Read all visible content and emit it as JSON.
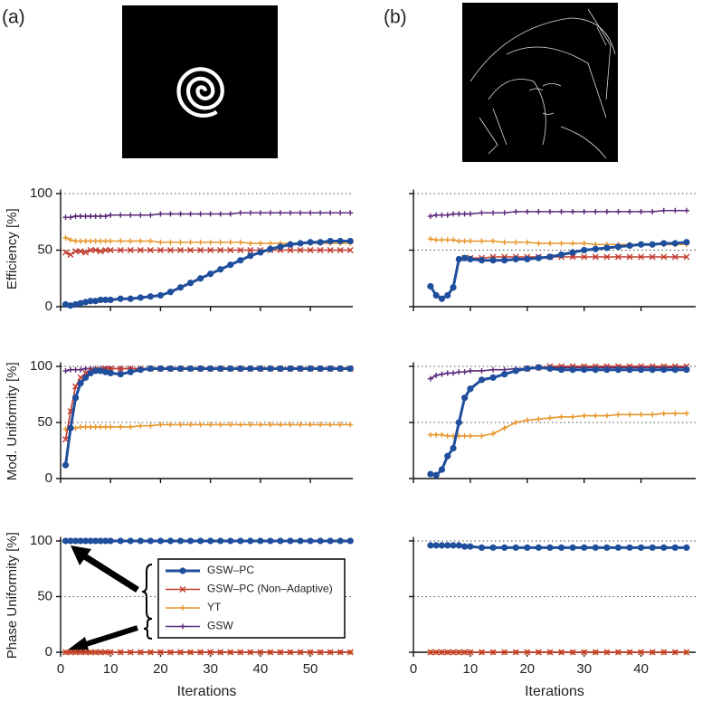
{
  "panel_labels": [
    "(a)",
    "(b)"
  ],
  "chart_data": [
    {
      "type": "line",
      "ylabel": "Efficiency [%]",
      "x": [
        1,
        2,
        3,
        4,
        5,
        6,
        7,
        8,
        9,
        10,
        12,
        14,
        16,
        18,
        20,
        22,
        24,
        26,
        28,
        30,
        32,
        34,
        36,
        38,
        40,
        42,
        44,
        46,
        48,
        50,
        52,
        54,
        56,
        58
      ],
      "xlim": [
        0,
        58.5
      ],
      "xticks": [
        0,
        10,
        20,
        30,
        40,
        50
      ],
      "show_xtick_labels": false,
      "ylim": [
        0,
        102
      ],
      "yticks": [
        0,
        50,
        100
      ],
      "show_ytick_labels": true,
      "grid": "dotted",
      "series": [
        {
          "color": "#1f4e9c",
          "marker": "o",
          "values": [
            2,
            1,
            2,
            3,
            4,
            5,
            5,
            6,
            6,
            6,
            7,
            7,
            8,
            9,
            10,
            13,
            17,
            21,
            25,
            29,
            33,
            37,
            41,
            45,
            48,
            51,
            53,
            55,
            56,
            57,
            57,
            58,
            58,
            58
          ]
        },
        {
          "color": "#c0392b",
          "marker": "x",
          "values": [
            48,
            46,
            49,
            49,
            48,
            50,
            50,
            49,
            50,
            50,
            50,
            50,
            50,
            50,
            50,
            50,
            50,
            50,
            50,
            50,
            50,
            50,
            50,
            50,
            50,
            50,
            50,
            50,
            50,
            50,
            50,
            50,
            50,
            50
          ]
        },
        {
          "color": "#e8962a",
          "marker": "+",
          "values": [
            61,
            59,
            58,
            58,
            58,
            58,
            58,
            58,
            58,
            58,
            58,
            58,
            58,
            58,
            57,
            57,
            57,
            57,
            57,
            57,
            57,
            57,
            57,
            56,
            56,
            56,
            56,
            56,
            56,
            56,
            56,
            56,
            56,
            56
          ]
        },
        {
          "color": "#5b2a7a",
          "marker": "+",
          "values": [
            79,
            79,
            80,
            80,
            80,
            80,
            80,
            80,
            80,
            81,
            81,
            81,
            81,
            81,
            82,
            82,
            82,
            82,
            82,
            82,
            82,
            82,
            83,
            83,
            83,
            83,
            83,
            83,
            83,
            83,
            83,
            83,
            83,
            83
          ]
        }
      ]
    },
    {
      "type": "line",
      "x": [
        3,
        4,
        5,
        6,
        7,
        8,
        9,
        10,
        12,
        14,
        16,
        18,
        20,
        22,
        24,
        26,
        28,
        30,
        32,
        34,
        36,
        38,
        40,
        42,
        44,
        46,
        48
      ],
      "xlim": [
        0,
        49.6
      ],
      "xticks": [
        0,
        10,
        20,
        30,
        40
      ],
      "show_xtick_labels": false,
      "ylim": [
        0,
        102
      ],
      "yticks": [
        0,
        50,
        100
      ],
      "show_ytick_labels": false,
      "grid": "dotted",
      "series": [
        {
          "color": "#1f4e9c",
          "marker": "o",
          "values": [
            18,
            10,
            7,
            10,
            17,
            42,
            43,
            42,
            41,
            41,
            41,
            42,
            42,
            43,
            44,
            46,
            48,
            50,
            51,
            52,
            53,
            54,
            55,
            55,
            56,
            56,
            57
          ]
        },
        {
          "color": "#c0392b",
          "marker": "x",
          "values": [
            null,
            null,
            null,
            null,
            null,
            null,
            43,
            43,
            43,
            44,
            44,
            44,
            44,
            44,
            44,
            44,
            44,
            44,
            44,
            44,
            44,
            44,
            44,
            44,
            44,
            44,
            44
          ]
        },
        {
          "color": "#e8962a",
          "marker": "+",
          "values": [
            60,
            59,
            59,
            59,
            59,
            58,
            58,
            58,
            58,
            58,
            57,
            57,
            57,
            56,
            56,
            56,
            56,
            56,
            55,
            55,
            55,
            55,
            55,
            55,
            55,
            55,
            55
          ]
        },
        {
          "color": "#5b2a7a",
          "marker": "+",
          "values": [
            80,
            81,
            81,
            81,
            82,
            82,
            82,
            82,
            83,
            83,
            83,
            84,
            84,
            84,
            84,
            84,
            84,
            84,
            84,
            84,
            84,
            84,
            84,
            84,
            85,
            85,
            85
          ]
        }
      ]
    },
    {
      "type": "line",
      "ylabel": "Mod. Uniformity [%]",
      "x": [
        1,
        2,
        3,
        4,
        5,
        6,
        7,
        8,
        9,
        10,
        12,
        14,
        16,
        18,
        20,
        22,
        24,
        26,
        28,
        30,
        32,
        34,
        36,
        38,
        40,
        42,
        44,
        46,
        48,
        50,
        52,
        54,
        56,
        58
      ],
      "xlim": [
        0,
        58.5
      ],
      "xticks": [
        0,
        10,
        20,
        30,
        40,
        50
      ],
      "show_xtick_labels": false,
      "ylim": [
        0,
        102
      ],
      "yticks": [
        0,
        50,
        100
      ],
      "show_ytick_labels": true,
      "grid": "dotted",
      "series": [
        {
          "color": "#1f4e9c",
          "marker": "o",
          "values": [
            12,
            45,
            72,
            85,
            90,
            94,
            96,
            96,
            95,
            94,
            93,
            95,
            97,
            98,
            98,
            98,
            98,
            98,
            98,
            98,
            98,
            98,
            98,
            98,
            98,
            98,
            98,
            98,
            98,
            98,
            98,
            98,
            98,
            98
          ]
        },
        {
          "color": "#c0392b",
          "marker": "x",
          "values": [
            35,
            60,
            82,
            90,
            94,
            96,
            97,
            97,
            98,
            98,
            98,
            98,
            98,
            98,
            98,
            98,
            98,
            98,
            98,
            98,
            98,
            98,
            98,
            98,
            98,
            98,
            98,
            98,
            98,
            98,
            98,
            98,
            98,
            98
          ]
        },
        {
          "color": "#e8962a",
          "marker": "+",
          "values": [
            44,
            45,
            45,
            46,
            46,
            46,
            46,
            46,
            46,
            46,
            46,
            46,
            47,
            47,
            48,
            48,
            48,
            48,
            48,
            48,
            48,
            48,
            48,
            48,
            48,
            48,
            48,
            48,
            48,
            48,
            48,
            48,
            48,
            48
          ]
        },
        {
          "color": "#5b2a7a",
          "marker": "+",
          "values": [
            96,
            97,
            97,
            97,
            98,
            98,
            98,
            98,
            98,
            98,
            98,
            98,
            98,
            98,
            98,
            98,
            98,
            98,
            98,
            98,
            98,
            98,
            98,
            98,
            98,
            98,
            98,
            98,
            98,
            98,
            98,
            98,
            98,
            98
          ]
        }
      ]
    },
    {
      "type": "line",
      "x": [
        3,
        4,
        5,
        6,
        7,
        8,
        9,
        10,
        12,
        14,
        16,
        18,
        20,
        22,
        24,
        26,
        28,
        30,
        32,
        34,
        36,
        38,
        40,
        42,
        44,
        46,
        48
      ],
      "xlim": [
        0,
        49.6
      ],
      "xticks": [
        0,
        10,
        20,
        30,
        40
      ],
      "show_xtick_labels": false,
      "ylim": [
        0,
        102
      ],
      "yticks": [
        0,
        50,
        100
      ],
      "show_ytick_labels": false,
      "grid": "dotted",
      "series": [
        {
          "color": "#1f4e9c",
          "marker": "o",
          "values": [
            4,
            3,
            8,
            20,
            27,
            50,
            72,
            80,
            88,
            90,
            93,
            96,
            98,
            99,
            98,
            97,
            97,
            97,
            97,
            97,
            97,
            97,
            97,
            97,
            97,
            97,
            97
          ]
        },
        {
          "color": "#c0392b",
          "marker": "x",
          "values": [
            null,
            null,
            null,
            null,
            null,
            null,
            null,
            null,
            null,
            null,
            null,
            null,
            98,
            99,
            100,
            100,
            100,
            100,
            100,
            100,
            100,
            100,
            100,
            100,
            100,
            100,
            100
          ]
        },
        {
          "color": "#e8962a",
          "marker": "+",
          "values": [
            39,
            39,
            39,
            38,
            38,
            38,
            38,
            38,
            38,
            40,
            45,
            50,
            52,
            53,
            54,
            55,
            55,
            56,
            56,
            56,
            57,
            57,
            57,
            57,
            58,
            58,
            58
          ]
        },
        {
          "color": "#5b2a7a",
          "marker": "+",
          "values": [
            89,
            92,
            93,
            94,
            94,
            95,
            95,
            96,
            96,
            97,
            97,
            98,
            98,
            99,
            99,
            99,
            99,
            99,
            99,
            99,
            99,
            99,
            99,
            99,
            99,
            99,
            99
          ]
        }
      ]
    },
    {
      "type": "line",
      "ylabel": "Phase Uniformity [%]",
      "xlabel": "Iterations",
      "x": [
        1,
        2,
        3,
        4,
        5,
        6,
        7,
        8,
        9,
        10,
        12,
        14,
        16,
        18,
        20,
        22,
        24,
        26,
        28,
        30,
        32,
        34,
        36,
        38,
        40,
        42,
        44,
        46,
        48,
        50,
        52,
        54,
        56,
        58
      ],
      "xlim": [
        0,
        58.5
      ],
      "xticks": [
        0,
        10,
        20,
        30,
        40,
        50
      ],
      "show_xtick_labels": true,
      "ylim": [
        0,
        102
      ],
      "yticks": [
        0,
        50,
        100
      ],
      "show_ytick_labels": true,
      "grid": "dotted",
      "legend": "center right",
      "series": [
        {
          "name": "GSW–PC",
          "color": "#1f4e9c",
          "marker": "o",
          "values": [
            100,
            100,
            100,
            100,
            100,
            100,
            100,
            100,
            100,
            100,
            100,
            100,
            100,
            100,
            100,
            100,
            100,
            100,
            100,
            100,
            100,
            100,
            100,
            100,
            100,
            100,
            100,
            100,
            100,
            100,
            100,
            100,
            100,
            100
          ]
        },
        {
          "name": "GSW–PC (Non–Adaptive)",
          "color": "#c0392b",
          "marker": "x",
          "values": [
            0,
            0,
            0,
            0,
            0,
            0,
            0,
            0,
            0,
            0,
            0,
            0,
            0,
            0,
            0,
            0,
            0,
            0,
            0,
            0,
            0,
            0,
            0,
            0,
            0,
            0,
            0,
            0,
            0,
            0,
            0,
            0,
            0,
            0
          ]
        },
        {
          "name": "YT",
          "color": "#e8962a",
          "marker": "+",
          "values": [
            0,
            0,
            0,
            0,
            0,
            0,
            0,
            0,
            0,
            0,
            0,
            0,
            0,
            0,
            0,
            0,
            0,
            0,
            0,
            0,
            0,
            0,
            0,
            0,
            0,
            0,
            0,
            0,
            0,
            0,
            0,
            0,
            0,
            0
          ]
        },
        {
          "name": "GSW",
          "color": "#5b2a7a",
          "marker": "+",
          "values": [
            0,
            0,
            0,
            0,
            0,
            0,
            0,
            0,
            0,
            0,
            0,
            0,
            0,
            0,
            0,
            0,
            0,
            0,
            0,
            0,
            0,
            0,
            0,
            0,
            0,
            0,
            0,
            0,
            0,
            0,
            0,
            0,
            0,
            0
          ]
        }
      ]
    },
    {
      "type": "line",
      "xlabel": "Iterations",
      "x": [
        3,
        4,
        5,
        6,
        7,
        8,
        9,
        10,
        12,
        14,
        16,
        18,
        20,
        22,
        24,
        26,
        28,
        30,
        32,
        34,
        36,
        38,
        40,
        42,
        44,
        46,
        48
      ],
      "xlim": [
        0,
        49.6
      ],
      "xticks": [
        0,
        10,
        20,
        30,
        40
      ],
      "show_xtick_labels": true,
      "ylim": [
        0,
        102
      ],
      "yticks": [
        0,
        50,
        100
      ],
      "show_ytick_labels": false,
      "grid": "dotted",
      "series": [
        {
          "color": "#1f4e9c",
          "marker": "o",
          "values": [
            96,
            96,
            96,
            96,
            96,
            96,
            95,
            95,
            94,
            94,
            94,
            94,
            94,
            94,
            94,
            94,
            94,
            94,
            94,
            94,
            94,
            94,
            94,
            94,
            94,
            94,
            94
          ]
        },
        {
          "color": "#c0392b",
          "marker": "x",
          "values": [
            0,
            0,
            0,
            0,
            0,
            0,
            0,
            0,
            0,
            0,
            0,
            0,
            0,
            0,
            0,
            0,
            0,
            0,
            0,
            0,
            0,
            0,
            0,
            0,
            0,
            0,
            0
          ]
        },
        {
          "color": "#e8962a",
          "marker": "+",
          "values": [
            0,
            0,
            0,
            0,
            0,
            0,
            0,
            0,
            0,
            0,
            0,
            0,
            0,
            0,
            0,
            0,
            0,
            0,
            0,
            0,
            0,
            0,
            0,
            0,
            0,
            0,
            0
          ]
        },
        {
          "color": "#5b2a7a",
          "marker": "+",
          "values": [
            0,
            0,
            0,
            0,
            0,
            0,
            0,
            0,
            0,
            0,
            0,
            0,
            0,
            0,
            0,
            0,
            0,
            0,
            0,
            0,
            0,
            0,
            0,
            0,
            0,
            0,
            0
          ]
        }
      ]
    }
  ]
}
